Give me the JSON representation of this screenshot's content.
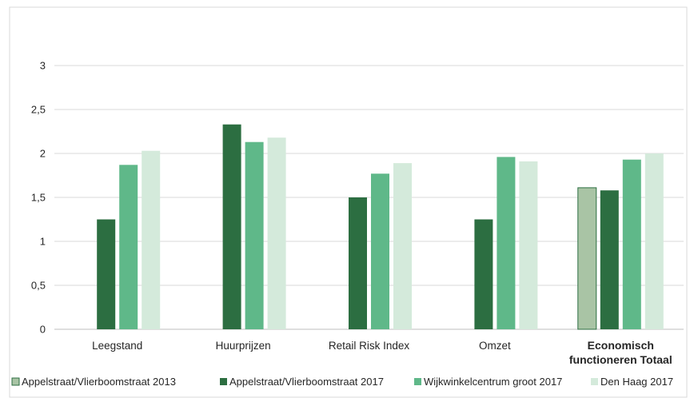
{
  "chart_data": {
    "type": "bar",
    "categories": [
      "Leegstand",
      "Huurprijzen",
      "Retail Risk Index",
      "Omzet",
      "Economisch functioneren Totaal"
    ],
    "category_lines": [
      [
        "Leegstand"
      ],
      [
        "Huurprijzen"
      ],
      [
        "Retail Risk Index"
      ],
      [
        "Omzet"
      ],
      [
        "Economisch",
        "functioneren Totaal"
      ]
    ],
    "series": [
      {
        "name": "Appelstraat/Vlierboomstraat 2013",
        "color": "#a9c4a5",
        "values": [
          null,
          null,
          null,
          null,
          1.61
        ]
      },
      {
        "name": "Appelstraat/Vlierboomstraat 2017",
        "color": "#2c6e41",
        "values": [
          1.25,
          2.33,
          1.5,
          1.25,
          1.58
        ]
      },
      {
        "name": "Wijkwinkelcentrum groot 2017",
        "color": "#5fb889",
        "values": [
          1.87,
          2.13,
          1.77,
          1.96,
          1.93
        ]
      },
      {
        "name": "Den Haag 2017",
        "color": "#d4eadb",
        "values": [
          2.03,
          2.18,
          1.89,
          1.91,
          2.0
        ]
      }
    ],
    "yticks": [
      "0",
      "0,5",
      "1",
      "1,5",
      "2",
      "2,5",
      "3"
    ],
    "ylim": [
      0,
      3
    ],
    "grid": true,
    "legend_position": "bottom",
    "bold_categories": [
      "Economisch functioneren Totaal"
    ]
  }
}
